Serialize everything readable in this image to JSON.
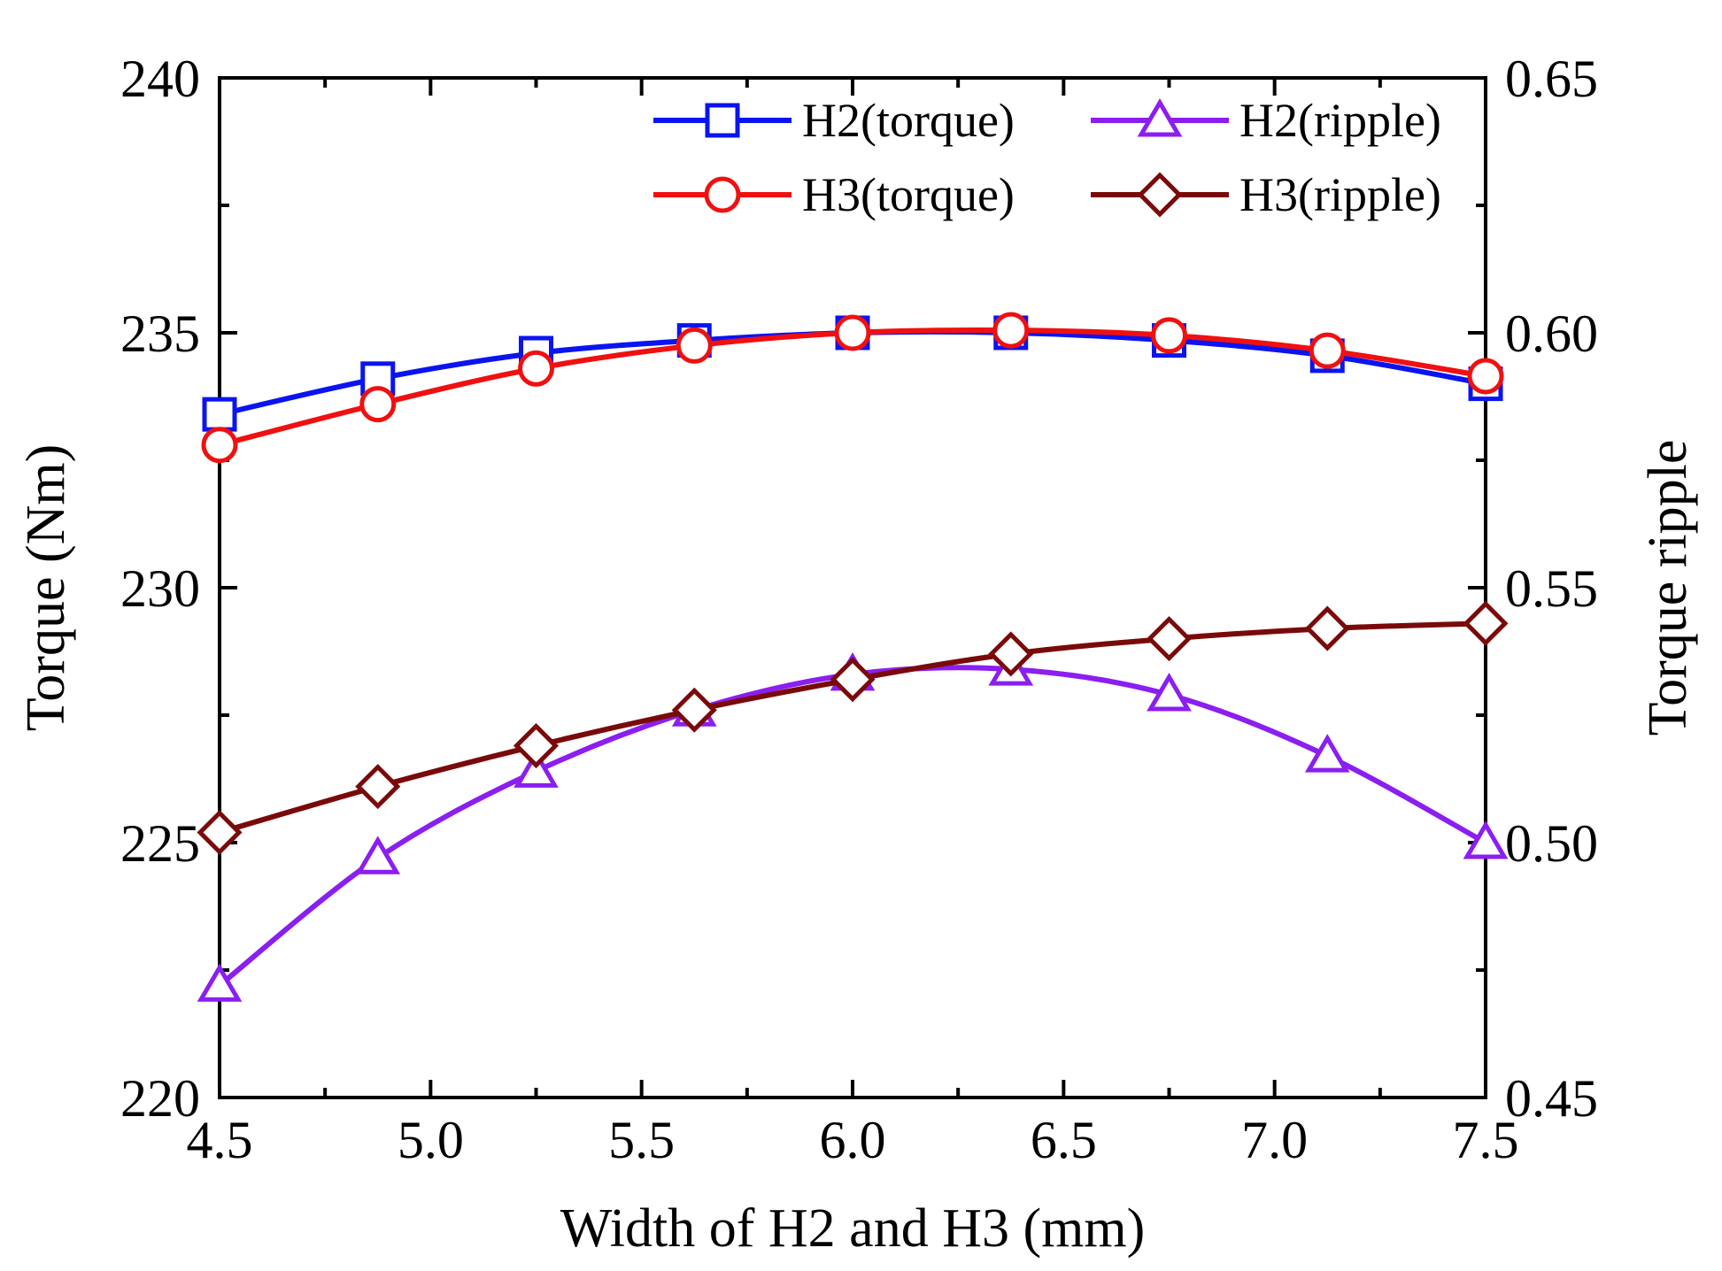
{
  "chart_data": {
    "type": "line",
    "title": "",
    "xlabel": "Width of H2 and H3 (mm)",
    "ylabel_left": "Torque (Nm)",
    "ylabel_right": "Torque ripple",
    "xlim": [
      4.5,
      7.5
    ],
    "ylim_left": [
      220,
      240
    ],
    "ylim_right": [
      0.45,
      0.65
    ],
    "x_ticks": [
      "4.5",
      "5.0",
      "5.5",
      "6.0",
      "6.5",
      "7.0",
      "7.5"
    ],
    "y_left_ticks": [
      "220",
      "225",
      "230",
      "235",
      "240"
    ],
    "y_right_ticks": [
      "0.45",
      "0.50",
      "0.55",
      "0.60",
      "0.65"
    ],
    "x": [
      4.5,
      4.875,
      5.25,
      5.625,
      6.0,
      6.375,
      6.75,
      7.125,
      7.5
    ],
    "legend_position": "top-right",
    "grid": false,
    "series": [
      {
        "name": "H2(torque)",
        "axis": "left",
        "color": "#0a14f0",
        "marker": "square",
        "values": [
          233.4,
          234.1,
          234.6,
          234.85,
          235.0,
          235.0,
          234.85,
          234.55,
          234.0
        ]
      },
      {
        "name": "H2(ripple)",
        "axis": "right",
        "color": "#8b1ef0",
        "marker": "triangle",
        "values": [
          0.472,
          0.497,
          0.514,
          0.526,
          0.533,
          0.534,
          0.529,
          0.517,
          0.5
        ]
      },
      {
        "name": "H3(torque)",
        "axis": "left",
        "color": "#f01010",
        "marker": "circle",
        "values": [
          232.8,
          233.6,
          234.3,
          234.75,
          235.0,
          235.05,
          234.95,
          234.65,
          234.15
        ]
      },
      {
        "name": "H3(ripple)",
        "axis": "right",
        "color": "#7a0a0a",
        "marker": "diamond",
        "values": [
          0.502,
          0.511,
          0.519,
          0.526,
          0.532,
          0.537,
          0.54,
          0.542,
          0.543
        ]
      }
    ]
  }
}
